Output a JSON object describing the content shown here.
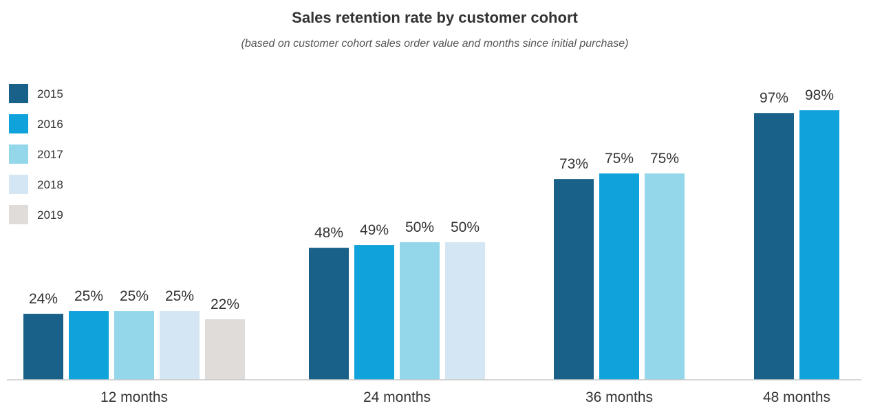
{
  "chart_data": {
    "type": "bar",
    "title": "Sales retention rate by customer cohort",
    "subtitle": "(based on customer cohort sales order value and months since initial purchase)",
    "xlabel": "",
    "ylabel": "",
    "ylim": [
      0,
      100
    ],
    "grid": false,
    "legend_position": "top-left",
    "categories": [
      "12 months",
      "24 months",
      "36 months",
      "48 months"
    ],
    "series": [
      {
        "name": "2015",
        "color": "#1a6189",
        "values": [
          24,
          48,
          73,
          97
        ],
        "labels": [
          "24%",
          "48%",
          "73%",
          "97%"
        ]
      },
      {
        "name": "2016",
        "color": "#10a2da",
        "values": [
          25,
          49,
          75,
          98
        ],
        "labels": [
          "25%",
          "49%",
          "75%",
          "98%"
        ]
      },
      {
        "name": "2017",
        "color": "#94d7eb",
        "values": [
          25,
          50,
          75,
          null
        ],
        "labels": [
          "25%",
          "50%",
          "75%",
          null
        ]
      },
      {
        "name": "2018",
        "color": "#d4e6f3",
        "values": [
          25,
          50,
          null,
          null
        ],
        "labels": [
          "25%",
          "50%",
          null,
          null
        ]
      },
      {
        "name": "2019",
        "color": "#dfdcd9",
        "values": [
          22,
          null,
          null,
          null
        ],
        "labels": [
          "22%",
          null,
          null,
          null
        ]
      }
    ]
  }
}
